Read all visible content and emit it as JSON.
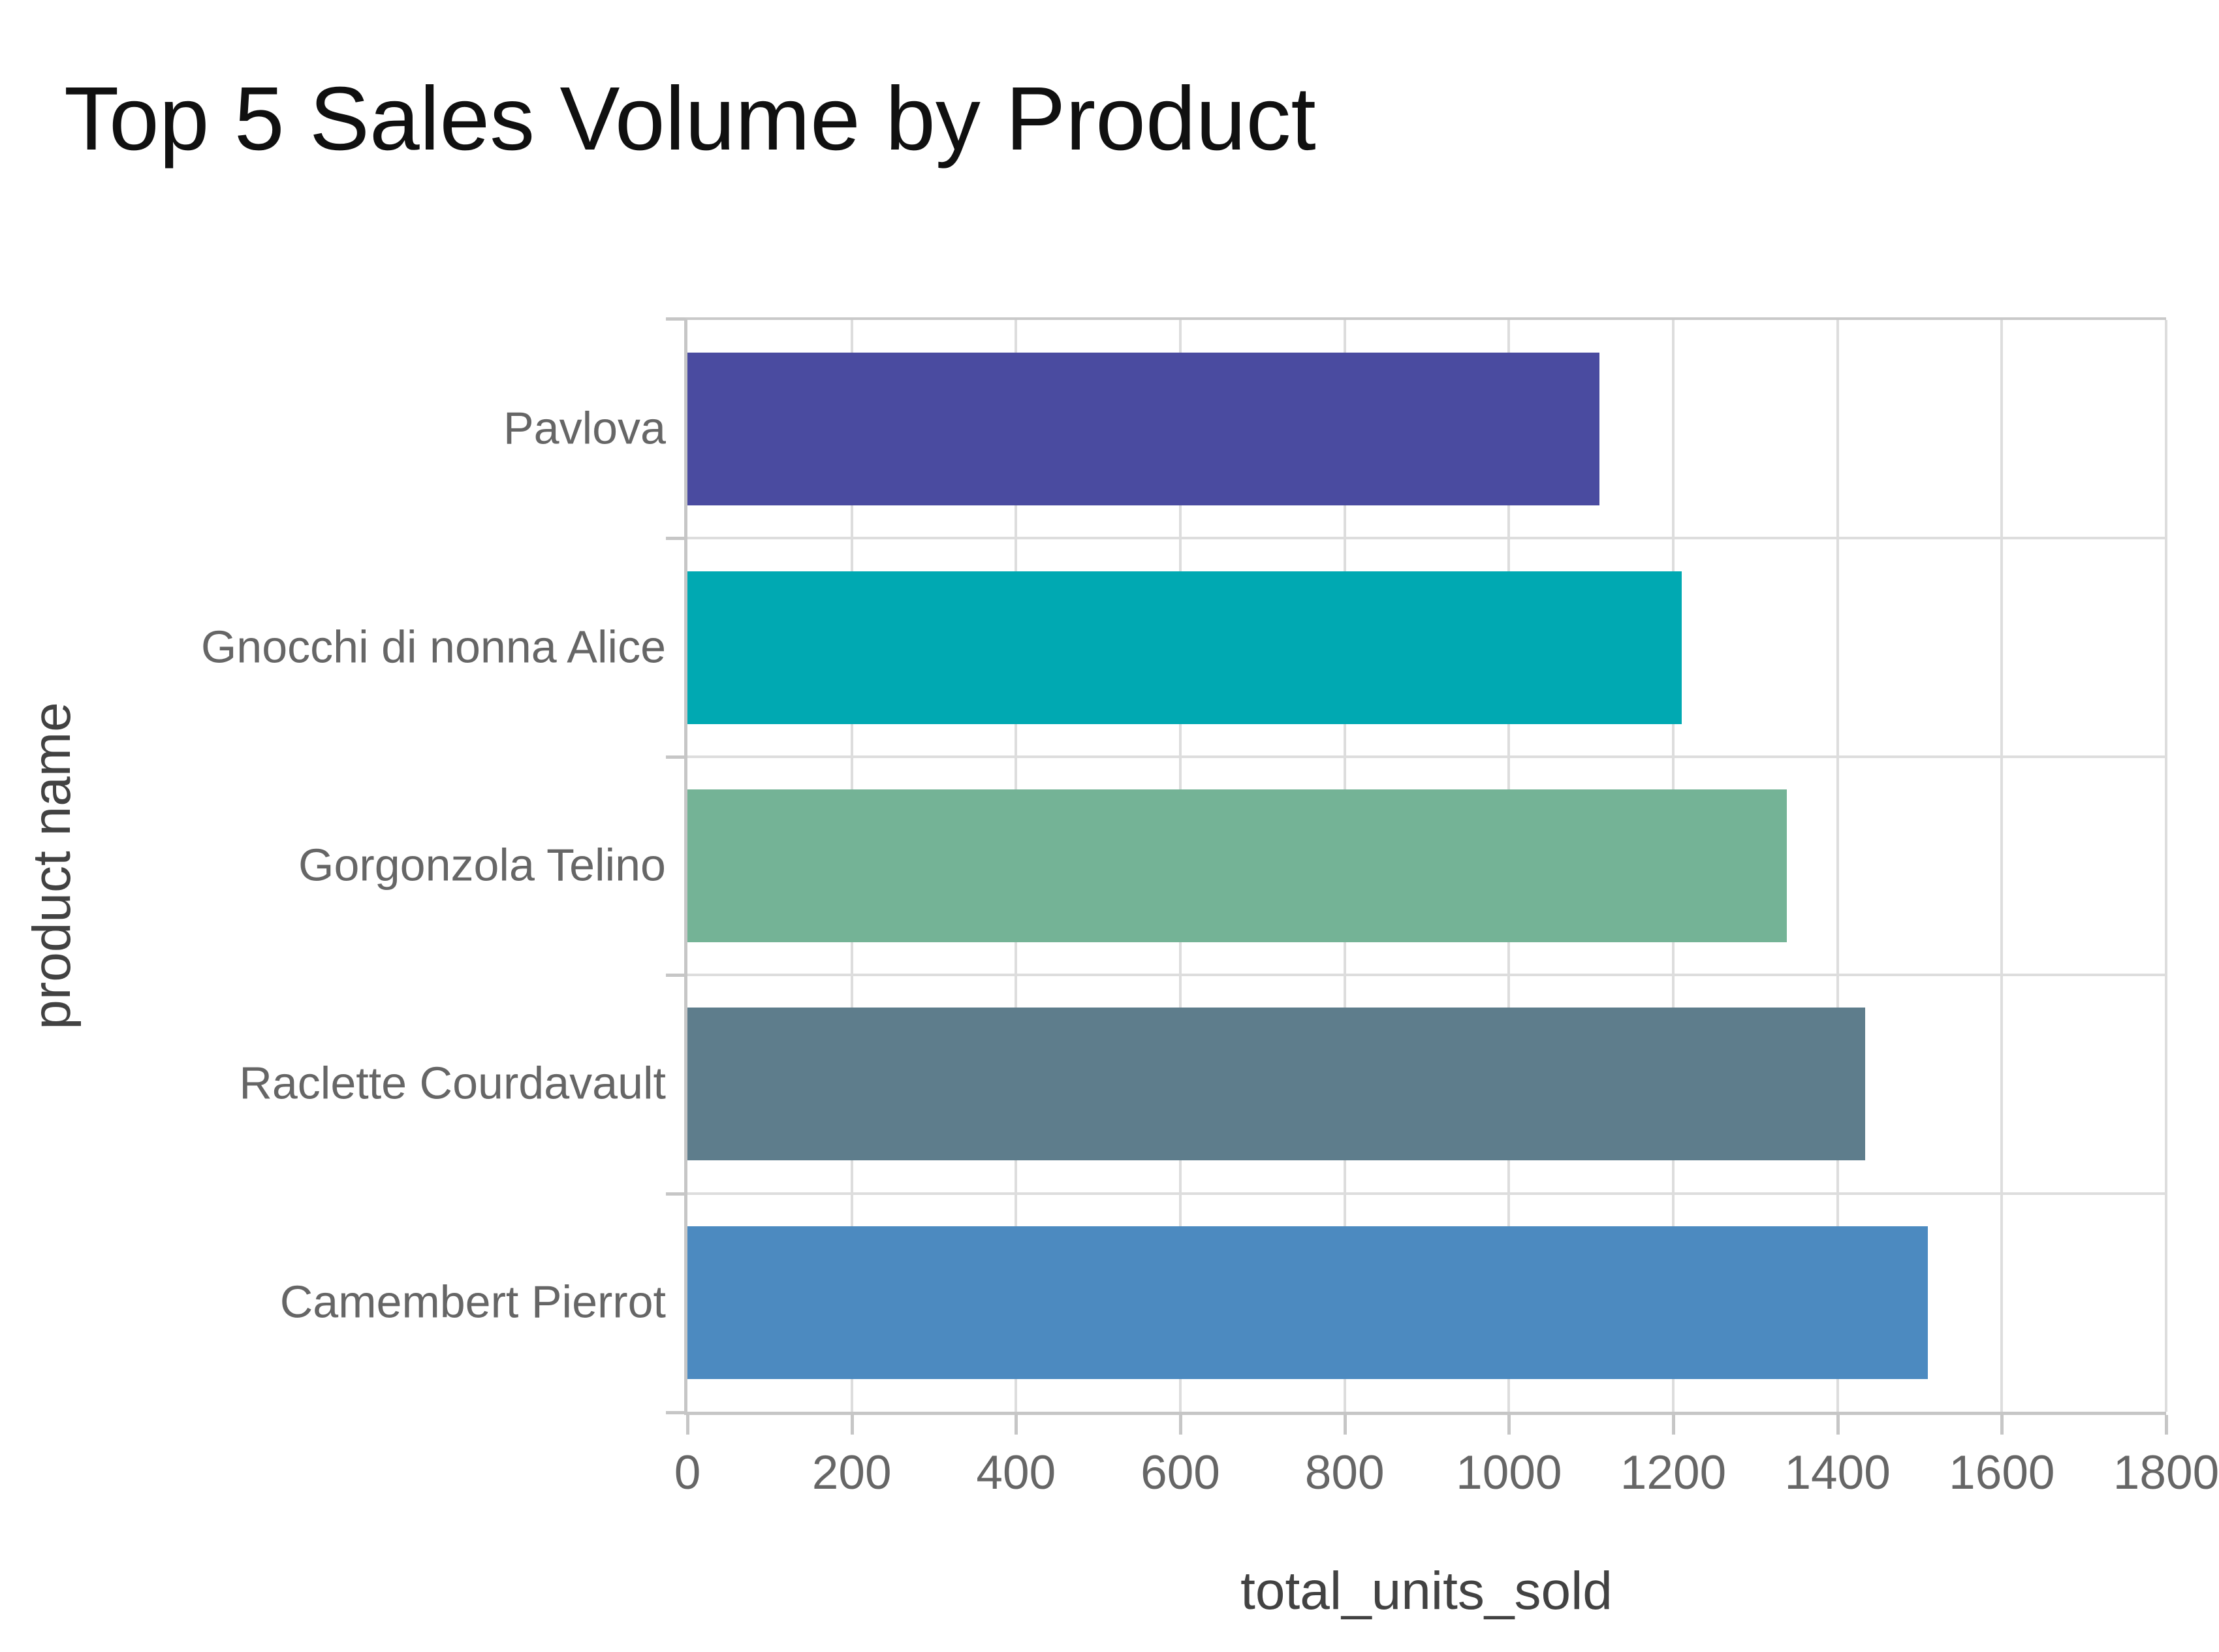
{
  "chart": {
    "title": "Top 5 Sales Volume by Product",
    "xlabel": "total_units_sold",
    "ylabel": "product name"
  },
  "chart_data": {
    "type": "bar",
    "orientation": "horizontal",
    "title": "Top 5 Sales Volume by Product",
    "xlabel": "total_units_sold",
    "ylabel": "product name",
    "categories": [
      "Pavlova",
      "Gnocchi di nonna Alice",
      "Gorgonzola Telino",
      "Raclette Courdavault",
      "Camembert Pierrot"
    ],
    "values": [
      1110,
      1210,
      1338,
      1434,
      1510
    ],
    "bar_colors": [
      "#4A4BA0",
      "#00A9B2",
      "#74B396",
      "#5E7D8C",
      "#4C8AC0"
    ],
    "xlim": [
      0,
      1800
    ],
    "xticks": [
      0,
      200,
      400,
      600,
      800,
      1000,
      1200,
      1400,
      1600,
      1800
    ],
    "grid": true,
    "legend": false,
    "colors": {
      "grid": "#DDDDDD",
      "axis_line": "#C6C6C6",
      "tick_label": "#666666",
      "axis_title": "#424242",
      "title": "#101010",
      "background": "#FFFFFF"
    }
  }
}
